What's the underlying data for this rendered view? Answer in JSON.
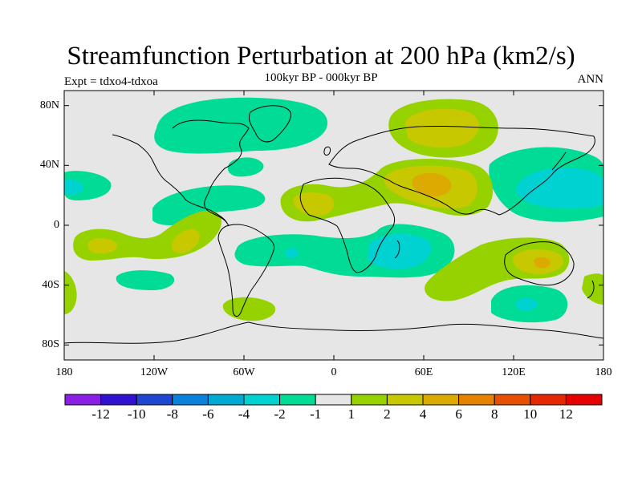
{
  "title": "Streamfunction Perturbation at 200 hPa (km2/s)",
  "subtitle": "100kyr BP - 000kyr BP",
  "experiment_label": "Expt = tdxo4-tdxoa",
  "season_label": "ANN",
  "lat_ticks": [
    "80N",
    "40N",
    "0",
    "40S",
    "80S"
  ],
  "lon_ticks": [
    "180",
    "120W",
    "60W",
    "0",
    "60E",
    "120E",
    "180"
  ],
  "colorbar": {
    "labels": [
      "-12",
      "-10",
      "-8",
      "-6",
      "-4",
      "-2",
      "-1",
      "1",
      "2",
      "4",
      "6",
      "8",
      "10",
      "12"
    ],
    "colors": [
      "#8c1ee6",
      "#3212d2",
      "#1e46d2",
      "#0a82dc",
      "#00aad2",
      "#00d2d2",
      "#00dc96",
      "#e6e6e6",
      "#96d200",
      "#c8c800",
      "#dcaa00",
      "#e68200",
      "#e65000",
      "#e62800",
      "#e60000"
    ]
  },
  "colors": {
    "neg_strong": "#00d2d2",
    "neg_weak": "#00dc96",
    "neutral": "#e6e6e6",
    "pos_weak": "#96d200",
    "pos_mid": "#c8c800",
    "pos_strong": "#dcaa00",
    "coastline": "#000000"
  }
}
